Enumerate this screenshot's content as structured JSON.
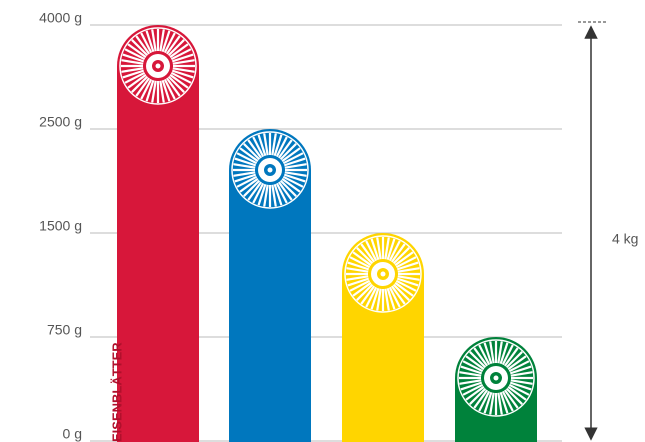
{
  "chart_data": {
    "type": "bar",
    "values": [
      4000,
      2500,
      1500,
      750
    ],
    "colors": [
      "#d7173a",
      "#0077be",
      "#ffd500",
      "#00823b"
    ],
    "yticks": [
      {
        "value": 4000,
        "label": "4000 g"
      },
      {
        "value": 2500,
        "label": "2500 g"
      },
      {
        "value": 1500,
        "label": "1500 g"
      },
      {
        "value": 750,
        "label": "750 g"
      },
      {
        "value": 0,
        "label": "0 g"
      }
    ],
    "grid": true,
    "side_label": "EISENBLÄTTER",
    "range_label": "4 kg"
  }
}
